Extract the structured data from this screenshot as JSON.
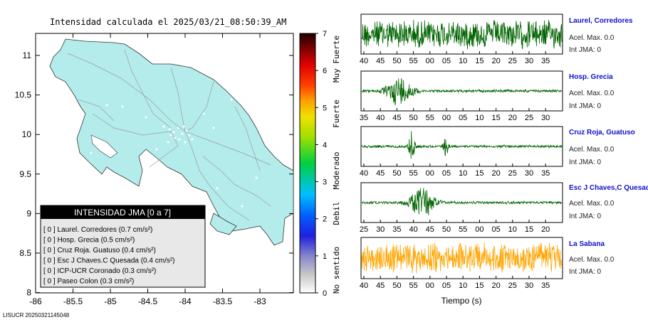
{
  "map": {
    "title": "Intensidad calculada el 2025/03/21_08:50:39_AM",
    "x_ticks": [
      "-86",
      "-85.5",
      "-85",
      "-84.5",
      "-84",
      "-83.5",
      "-83"
    ],
    "y_ticks": [
      "11",
      "10.5",
      "10",
      "9.5",
      "9",
      "8.5",
      "8"
    ],
    "land_color": "#b4ecec",
    "legend": {
      "title": "INTENSIDAD JMA [0 a 7]",
      "items": [
        {
          "text": "[ 0 ]  Laurel. Corredores (0.7 cm/s²)"
        },
        {
          "text": "[ 0 ]  Hosp. Grecia (0.5 cm/s²)"
        },
        {
          "text": "[ 0 ]  Cruz Roja. Guatuso (0.4 cm/s²)"
        },
        {
          "text": "[ 0 ]  Esc J Chaves.C Quesada (0.4 cm/s²)"
        },
        {
          "text": "[ 0 ]  ICP-UCR Coronado (0.3 cm/s²)"
        },
        {
          "text": "[ 0 ]  Paseo Colon (0.3 cm/s²)"
        }
      ]
    }
  },
  "colorbar": {
    "ticks": [
      "7",
      "6",
      "5",
      "4",
      "3",
      "2",
      "1",
      "0"
    ],
    "categories": [
      "Muy Fuerte",
      "Fuerte",
      "Moderado",
      "Debil",
      "No sentido"
    ]
  },
  "stations": [
    {
      "name": "Laurel, Corredores",
      "accel": "Acel. Max. 0.0",
      "int": "Int JMA: 0",
      "ticks": [
        "40",
        "45",
        "50",
        "55",
        "00",
        "05",
        "10",
        "15",
        "20",
        "25",
        "30",
        "35"
      ],
      "color": "#006400",
      "style": "noise"
    },
    {
      "name": "Hosp. Grecia",
      "accel": "Acel. Max. 0.0",
      "int": "Int JMA: 0",
      "ticks": [
        "35",
        "40",
        "45",
        "50",
        "55",
        "00",
        "05",
        "10",
        "15",
        "20",
        "25",
        "30"
      ],
      "color": "#006400",
      "style": "burst1"
    },
    {
      "name": "Cruz Roja, Guatuso",
      "accel": "Acel. Max. 0.0",
      "int": "Int JMA: 0",
      "ticks": [
        "40",
        "45",
        "50",
        "55",
        "00",
        "05",
        "10",
        "15",
        "20",
        "25",
        "30",
        "35"
      ],
      "color": "#006400",
      "style": "spikes"
    },
    {
      "name": "Esc J Chaves,C Quesada",
      "accel": "Acel. Max. 0.0",
      "int": "Int JMA: 0",
      "ticks": [
        "25",
        "30",
        "35",
        "40",
        "45",
        "50",
        "55",
        "00",
        "05",
        "10",
        "15",
        "20"
      ],
      "color": "#006400",
      "style": "burst2"
    },
    {
      "name": "La Sabana",
      "accel": "Acel. Max. 0.0",
      "int": "Int JMA: 0",
      "ticks": [
        "40",
        "45",
        "50",
        "55",
        "00",
        "05",
        "10",
        "15",
        "20",
        "25",
        "30",
        "35"
      ],
      "color": "#ffa500",
      "style": "noise"
    }
  ],
  "xlabel": "Tiempo (s)",
  "footer": "LISUCR 20250321145048"
}
